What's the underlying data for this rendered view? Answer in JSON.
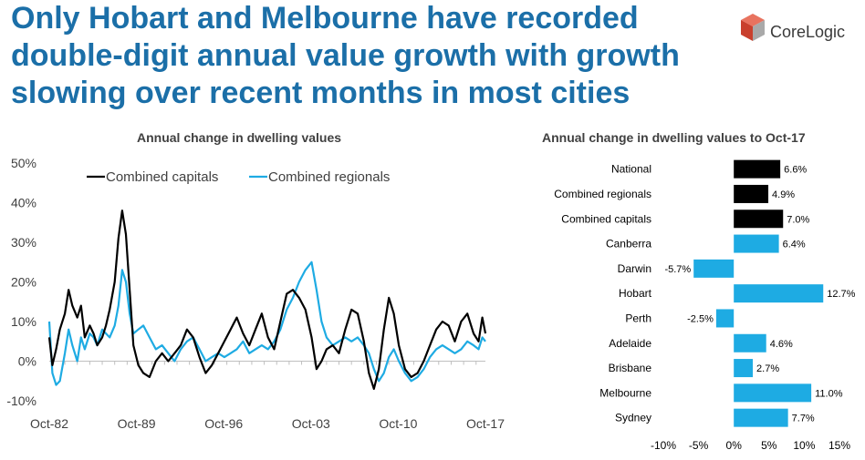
{
  "headline": "Only Hobart and Melbourne have recorded double-digit annual value growth with growth slowing over recent months in most cities",
  "logo": {
    "text": "CoreLogic",
    "icon": "corelogic-cube-logo",
    "color": "#e0503a"
  },
  "colors": {
    "capitals": "#000000",
    "regionals": "#1eabe3",
    "title": "#1b6fa8",
    "text": "#404040"
  },
  "chart_data": [
    {
      "type": "line",
      "title": "Annual change in dwelling values",
      "xlabel": "",
      "ylabel": "",
      "x_ticks": [
        "Oct-82",
        "Oct-89",
        "Oct-96",
        "Oct-03",
        "Oct-10",
        "Oct-17"
      ],
      "y_ticks": [
        "50%",
        "40%",
        "30%",
        "20%",
        "10%",
        "0%",
        "-10%"
      ],
      "ylim": [
        -10,
        50
      ],
      "xlim": [
        1982.75,
        2017.75
      ],
      "legend": [
        "Combined capitals",
        "Combined regionals"
      ],
      "legend_position": "top",
      "series": [
        {
          "name": "Combined capitals",
          "color": "#000000",
          "x": [
            1982.75,
            1983.0,
            1983.3,
            1983.6,
            1984.0,
            1984.3,
            1984.6,
            1985.0,
            1985.3,
            1985.6,
            1986.0,
            1986.3,
            1986.6,
            1987.0,
            1987.3,
            1987.6,
            1988.0,
            1988.3,
            1988.6,
            1988.9,
            1989.2,
            1989.5,
            1989.9,
            1990.3,
            1990.8,
            1991.3,
            1991.8,
            1992.3,
            1992.8,
            1993.3,
            1993.8,
            1994.3,
            1994.8,
            1995.3,
            1995.8,
            1996.3,
            1996.8,
            1997.3,
            1997.8,
            1998.3,
            1998.8,
            1999.3,
            1999.8,
            2000.3,
            2000.8,
            2001.3,
            2001.8,
            2002.3,
            2002.8,
            2003.3,
            2003.8,
            2004.2,
            2004.6,
            2005.0,
            2005.5,
            2006.0,
            2006.5,
            2007.0,
            2007.5,
            2008.0,
            2008.4,
            2008.8,
            2009.2,
            2009.6,
            2010.0,
            2010.4,
            2010.8,
            2011.3,
            2011.8,
            2012.3,
            2012.8,
            2013.3,
            2013.8,
            2014.3,
            2014.8,
            2015.3,
            2015.8,
            2016.3,
            2016.8,
            2017.2,
            2017.5,
            2017.75
          ],
          "values": [
            6,
            -1,
            3,
            8,
            12,
            18,
            14,
            11,
            14,
            6,
            9,
            7,
            4,
            6,
            9,
            13,
            20,
            31,
            38,
            32,
            18,
            4,
            -1,
            -3,
            -4,
            0,
            2,
            0,
            2,
            4,
            8,
            6,
            1,
            -3,
            -1,
            2,
            5,
            8,
            11,
            7,
            4,
            8,
            12,
            6,
            3,
            10,
            17,
            18,
            16,
            13,
            6,
            -2,
            0,
            3,
            4,
            2,
            8,
            13,
            12,
            5,
            -3,
            -7,
            -2,
            8,
            16,
            12,
            4,
            -2,
            -4,
            -3,
            0,
            4,
            8,
            10,
            9,
            5,
            10,
            12,
            7,
            5,
            11,
            7
          ]
        },
        {
          "name": "Combined regionals",
          "color": "#1eabe3",
          "x": [
            1982.75,
            1983.0,
            1983.3,
            1983.6,
            1984.0,
            1984.3,
            1984.6,
            1985.0,
            1985.3,
            1985.6,
            1986.0,
            1986.3,
            1986.6,
            1987.0,
            1987.3,
            1987.6,
            1988.0,
            1988.3,
            1988.6,
            1988.9,
            1989.2,
            1989.5,
            1989.9,
            1990.3,
            1990.8,
            1991.3,
            1991.8,
            1992.3,
            1992.8,
            1993.3,
            1993.8,
            1994.3,
            1994.8,
            1995.3,
            1995.8,
            1996.3,
            1996.8,
            1997.3,
            1997.8,
            1998.3,
            1998.8,
            1999.3,
            1999.8,
            2000.3,
            2000.8,
            2001.3,
            2001.8,
            2002.3,
            2002.8,
            2003.3,
            2003.8,
            2004.2,
            2004.6,
            2005.0,
            2005.5,
            2006.0,
            2006.5,
            2007.0,
            2007.5,
            2008.0,
            2008.4,
            2008.8,
            2009.2,
            2009.6,
            2010.0,
            2010.4,
            2010.8,
            2011.3,
            2011.8,
            2012.3,
            2012.8,
            2013.3,
            2013.8,
            2014.3,
            2014.8,
            2015.3,
            2015.8,
            2016.3,
            2016.8,
            2017.2,
            2017.5,
            2017.75
          ],
          "values": [
            10,
            -3,
            -6,
            -5,
            2,
            8,
            4,
            0,
            6,
            3,
            7,
            6,
            4,
            8,
            7,
            6,
            9,
            14,
            23,
            20,
            12,
            7,
            8,
            9,
            6,
            3,
            4,
            2,
            0,
            3,
            5,
            6,
            3,
            0,
            1,
            2,
            1,
            2,
            3,
            5,
            2,
            3,
            4,
            3,
            5,
            8,
            13,
            16,
            20,
            23,
            25,
            18,
            10,
            6,
            4,
            5,
            6,
            5,
            6,
            4,
            2,
            -2,
            -5,
            -3,
            1,
            3,
            0,
            -3,
            -5,
            -4,
            -2,
            1,
            3,
            4,
            3,
            2,
            3,
            5,
            4,
            3,
            6,
            5
          ]
        }
      ]
    },
    {
      "type": "bar",
      "orientation": "horizontal",
      "title": "Annual change in dwelling values to Oct-17",
      "categories": [
        "National",
        "Combined regionals",
        "Combined capitals",
        "Canberra",
        "Darwin",
        "Hobart",
        "Perth",
        "Adelaide",
        "Brisbane",
        "Melbourne",
        "Sydney"
      ],
      "values": [
        6.6,
        4.9,
        7.0,
        6.4,
        -5.7,
        12.7,
        -2.5,
        4.6,
        2.7,
        11.0,
        7.7
      ],
      "labels": [
        "6.6%",
        "4.9%",
        "7.0%",
        "6.4%",
        "-5.7%",
        "12.7%",
        "-2.5%",
        "4.6%",
        "2.7%",
        "11.0%",
        "7.7%"
      ],
      "bar_colors": [
        "#000000",
        "#000000",
        "#000000",
        "#1eabe3",
        "#1eabe3",
        "#1eabe3",
        "#1eabe3",
        "#1eabe3",
        "#1eabe3",
        "#1eabe3",
        "#1eabe3"
      ],
      "x_ticks": [
        "-10%",
        "-5%",
        "0%",
        "5%",
        "10%",
        "15%"
      ],
      "xlim": [
        -10,
        15
      ]
    }
  ]
}
